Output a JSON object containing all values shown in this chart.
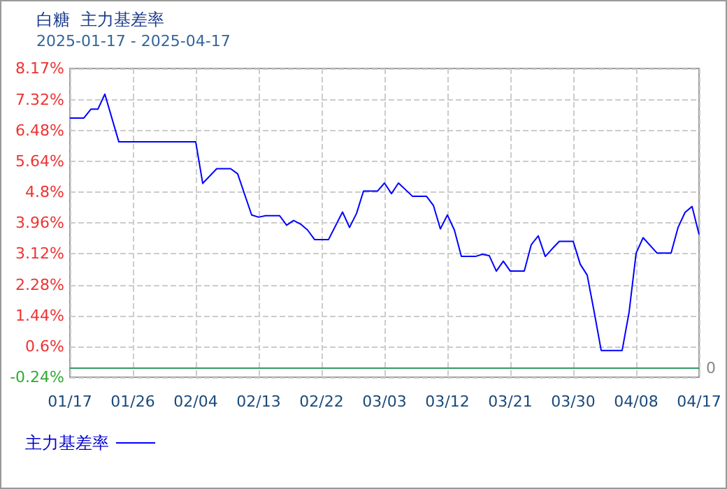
{
  "chart_data": {
    "type": "line",
    "title": "白糖  主力基差率",
    "subtitle": "2025-01-17 - 2025-04-17",
    "x": [
      "2025-01-17",
      "2025-01-19",
      "2025-01-20",
      "2025-01-21",
      "2025-01-22",
      "2025-01-24",
      "2025-02-04",
      "2025-02-05",
      "2025-02-07",
      "2025-02-09",
      "2025-02-10",
      "2025-02-12",
      "2025-02-13",
      "2025-02-14",
      "2025-02-16",
      "2025-02-17",
      "2025-02-18",
      "2025-02-19",
      "2025-02-20",
      "2025-02-21",
      "2025-02-23",
      "2025-02-25",
      "2025-02-26",
      "2025-02-27",
      "2025-02-28",
      "2025-03-02",
      "2025-03-03",
      "2025-03-04",
      "2025-03-05",
      "2025-03-07",
      "2025-03-09",
      "2025-03-10",
      "2025-03-11",
      "2025-03-12",
      "2025-03-13",
      "2025-03-14",
      "2025-03-16",
      "2025-03-17",
      "2025-03-18",
      "2025-03-19",
      "2025-03-20",
      "2025-03-21",
      "2025-03-23",
      "2025-03-24",
      "2025-03-25",
      "2025-03-26",
      "2025-03-27",
      "2025-03-28",
      "2025-03-30",
      "2025-03-31",
      "2025-04-01",
      "2025-04-02",
      "2025-04-03",
      "2025-04-06",
      "2025-04-07",
      "2025-04-08",
      "2025-04-09",
      "2025-04-11",
      "2025-04-13",
      "2025-04-14",
      "2025-04-15",
      "2025-04-16",
      "2025-04-17"
    ],
    "series": [
      {
        "name": "主力基差率",
        "color": "#0000ff",
        "values": [
          6.82,
          6.82,
          7.06,
          7.06,
          7.47,
          6.17,
          6.17,
          5.04,
          5.44,
          5.44,
          5.3,
          4.18,
          4.12,
          4.16,
          4.16,
          3.9,
          4.03,
          3.93,
          3.77,
          3.51,
          3.51,
          4.26,
          3.84,
          4.22,
          4.83,
          4.83,
          5.05,
          4.76,
          5.05,
          4.69,
          4.69,
          4.44,
          3.8,
          4.18,
          3.77,
          3.05,
          3.05,
          3.11,
          3.07,
          2.65,
          2.92,
          2.65,
          2.65,
          3.37,
          3.61,
          3.05,
          3.26,
          3.46,
          3.46,
          2.84,
          2.54,
          1.54,
          0.49,
          0.49,
          1.54,
          3.14,
          3.56,
          3.14,
          3.14,
          3.84,
          4.25,
          4.41,
          3.65
        ]
      }
    ],
    "xlim": [
      "2025-01-17",
      "2025-04-17"
    ],
    "xticks": [
      {
        "value": "2025-01-17",
        "label": "01/17"
      },
      {
        "value": "2025-01-26",
        "label": "01/26"
      },
      {
        "value": "2025-02-04",
        "label": "02/04"
      },
      {
        "value": "2025-02-13",
        "label": "02/13"
      },
      {
        "value": "2025-02-22",
        "label": "02/22"
      },
      {
        "value": "2025-03-03",
        "label": "03/03"
      },
      {
        "value": "2025-03-12",
        "label": "03/12"
      },
      {
        "value": "2025-03-21",
        "label": "03/21"
      },
      {
        "value": "2025-03-30",
        "label": "03/30"
      },
      {
        "value": "2025-04-08",
        "label": "04/08"
      },
      {
        "value": "2025-04-17",
        "label": "04/17"
      }
    ],
    "ylim": [
      -0.24,
      8.17
    ],
    "yticks": [
      {
        "value": -0.24,
        "label": "-0.24%"
      },
      {
        "value": 0.6,
        "label": "0.6%"
      },
      {
        "value": 1.44,
        "label": "1.44%"
      },
      {
        "value": 2.28,
        "label": "2.28%"
      },
      {
        "value": 3.12,
        "label": "3.12%"
      },
      {
        "value": 3.96,
        "label": "3.96%"
      },
      {
        "value": 4.8,
        "label": "4.8%"
      },
      {
        "value": 5.64,
        "label": "5.64%"
      },
      {
        "value": 6.48,
        "label": "6.48%"
      },
      {
        "value": 7.32,
        "label": "7.32%"
      },
      {
        "value": 8.17,
        "label": "8.17%"
      }
    ],
    "ref_lines": [
      {
        "axis": "y",
        "value": 0,
        "label": "0",
        "color": "#339966"
      }
    ],
    "grid": true,
    "legend": "bottom left"
  }
}
